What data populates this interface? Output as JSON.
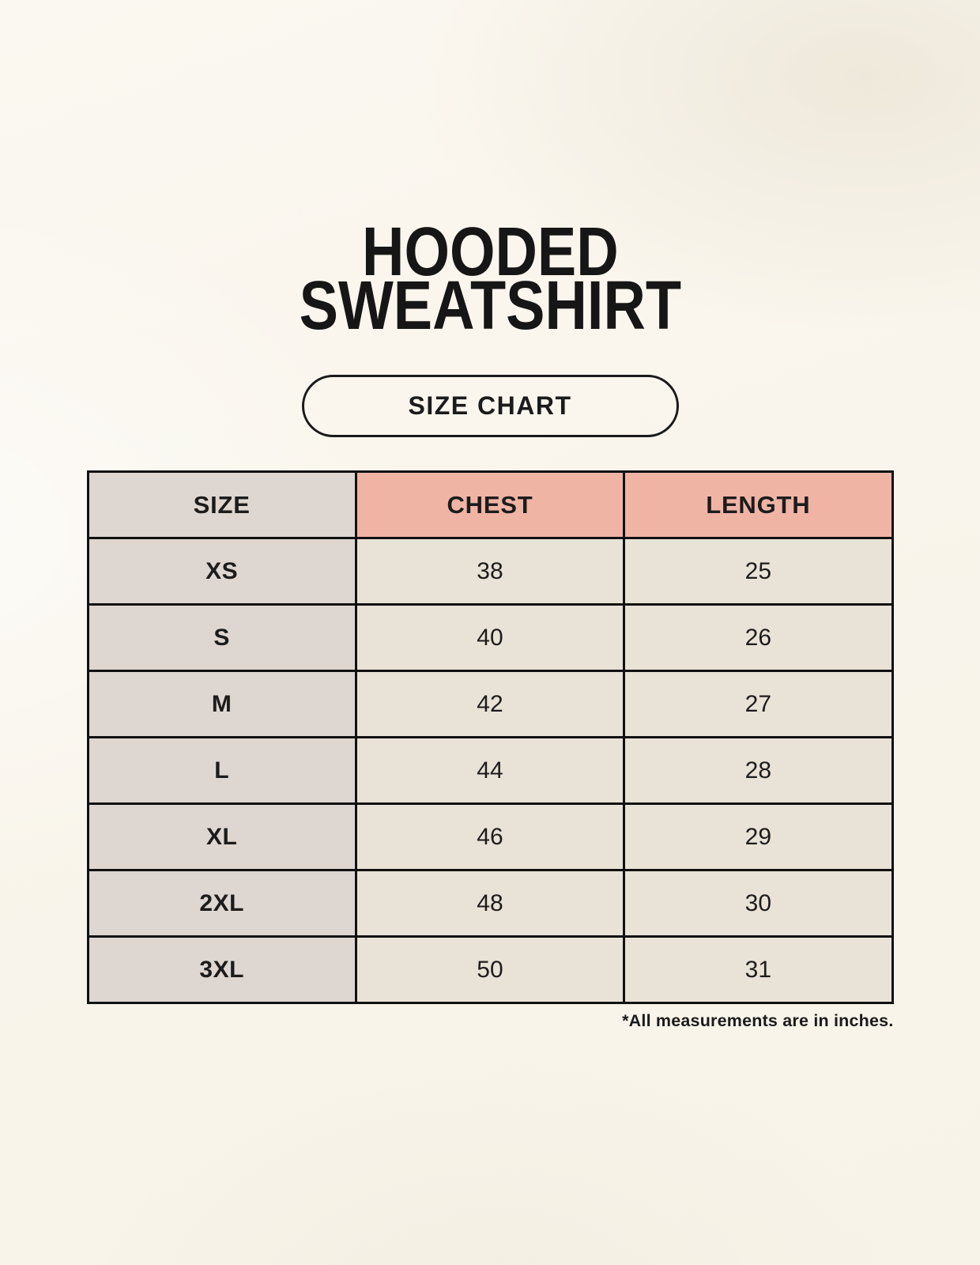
{
  "title": {
    "line1": "HOODED",
    "line2": "SWEATSHIRT"
  },
  "badge_label": "SIZE CHART",
  "footnote": "*All measurements are in inches.",
  "colors": {
    "background": "#f9f5ec",
    "header_accent": "#f0b4a4",
    "size_column": "#ded6d0",
    "data_cell": "#e9e2d6",
    "table_border": "#111111",
    "text": "#1c1c1c"
  },
  "chart_data": {
    "type": "table",
    "title": "HOODED SWEATSHIRT",
    "subtitle": "SIZE CHART",
    "columns": [
      "SIZE",
      "CHEST",
      "LENGTH"
    ],
    "rows": [
      {
        "size": "XS",
        "chest": 38,
        "length": 25
      },
      {
        "size": "S",
        "chest": 40,
        "length": 26
      },
      {
        "size": "M",
        "chest": 42,
        "length": 27
      },
      {
        "size": "L",
        "chest": 44,
        "length": 28
      },
      {
        "size": "XL",
        "chest": 46,
        "length": 29
      },
      {
        "size": "2XL",
        "chest": 48,
        "length": 30
      },
      {
        "size": "3XL",
        "chest": 50,
        "length": 31
      }
    ],
    "units": "inches"
  }
}
